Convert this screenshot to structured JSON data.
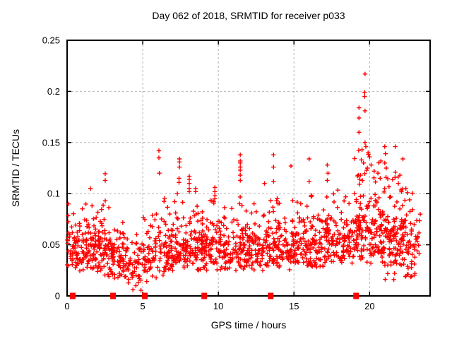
{
  "figure": {
    "background": "#ffffff"
  },
  "chart_data": {
    "type": "scatter",
    "title": "Day 062 of 2018, SRMTID for receiver p033",
    "xlabel": "GPS time / hours",
    "ylabel": "SRMTID / TECUs",
    "xlim": [
      0,
      24
    ],
    "ylim": [
      0,
      0.25
    ],
    "xticks": [
      0,
      5,
      10,
      15,
      20
    ],
    "xtick_labels": [
      "0",
      "5",
      "10",
      "15",
      "20"
    ],
    "yticks": [
      0,
      0.05,
      0.1,
      0.15,
      0.2,
      0.25
    ],
    "ytick_labels": [
      "0",
      "0.05",
      "0.1",
      "0.15",
      "0.2",
      "0.25"
    ],
    "grid": {
      "style": "dashed",
      "on_major": true,
      "color": "#b3b3b3"
    },
    "legend": "none",
    "colors": {
      "marker": "#ff0000",
      "border": "#000000",
      "background": "#ffffff"
    },
    "series": [
      {
        "name": "srmtid-points",
        "marker": "plus",
        "color": "#ff0000",
        "seed": 20180623,
        "band_segments_format": [
          "x_start",
          "x_end",
          "n_points",
          "center",
          "sigma",
          "y_min",
          "y_max"
        ],
        "band_segments": [
          [
            0.0,
            0.5,
            28,
            0.048,
            0.013,
            0.025,
            0.09
          ],
          [
            0.5,
            1.0,
            32,
            0.045,
            0.012,
            0.022,
            0.08
          ],
          [
            1.0,
            2.0,
            70,
            0.046,
            0.013,
            0.02,
            0.095
          ],
          [
            2.0,
            3.0,
            70,
            0.044,
            0.013,
            0.018,
            0.09
          ],
          [
            3.0,
            4.0,
            65,
            0.038,
            0.011,
            0.015,
            0.075
          ],
          [
            4.0,
            5.0,
            42,
            0.03,
            0.012,
            0.005,
            0.06
          ],
          [
            5.0,
            6.0,
            50,
            0.04,
            0.013,
            0.012,
            0.085
          ],
          [
            6.0,
            7.0,
            60,
            0.046,
            0.013,
            0.02,
            0.1
          ],
          [
            7.0,
            8.0,
            65,
            0.048,
            0.014,
            0.025,
            0.105
          ],
          [
            8.0,
            9.0,
            65,
            0.05,
            0.014,
            0.025,
            0.1
          ],
          [
            9.0,
            10.0,
            60,
            0.046,
            0.013,
            0.022,
            0.095
          ],
          [
            10.0,
            11.0,
            60,
            0.047,
            0.013,
            0.025,
            0.092
          ],
          [
            11.0,
            12.0,
            62,
            0.048,
            0.014,
            0.025,
            0.105
          ],
          [
            12.0,
            13.0,
            62,
            0.046,
            0.013,
            0.025,
            0.095
          ],
          [
            13.0,
            14.0,
            62,
            0.048,
            0.014,
            0.025,
            0.1
          ],
          [
            14.0,
            15.0,
            60,
            0.047,
            0.013,
            0.025,
            0.095
          ],
          [
            15.0,
            16.0,
            60,
            0.048,
            0.013,
            0.027,
            0.098
          ],
          [
            16.0,
            17.0,
            60,
            0.05,
            0.014,
            0.028,
            0.1
          ],
          [
            17.0,
            18.0,
            62,
            0.052,
            0.014,
            0.03,
            0.105
          ],
          [
            18.0,
            19.0,
            60,
            0.05,
            0.013,
            0.03,
            0.098
          ],
          [
            19.0,
            20.0,
            75,
            0.062,
            0.02,
            0.032,
            0.145
          ],
          [
            20.0,
            21.0,
            75,
            0.06,
            0.02,
            0.032,
            0.132
          ],
          [
            21.0,
            22.0,
            75,
            0.055,
            0.018,
            0.015,
            0.12
          ],
          [
            22.0,
            23.0,
            70,
            0.05,
            0.018,
            0.018,
            0.105
          ],
          [
            23.0,
            23.35,
            14,
            0.045,
            0.015,
            0.02,
            0.08
          ]
        ],
        "outlier_points": [
          [
            0.08,
            0.09
          ],
          [
            1.54,
            0.105
          ],
          [
            2.52,
            0.1195
          ],
          [
            2.52,
            0.113
          ],
          [
            2.52,
            0.093
          ],
          [
            6.07,
            0.142
          ],
          [
            6.07,
            0.135
          ],
          [
            6.1,
            0.12
          ],
          [
            7.43,
            0.134
          ],
          [
            7.43,
            0.131
          ],
          [
            7.43,
            0.126
          ],
          [
            7.4,
            0.115
          ],
          [
            7.4,
            0.111
          ],
          [
            8.08,
            0.117
          ],
          [
            8.08,
            0.114
          ],
          [
            8.08,
            0.11
          ],
          [
            8.08,
            0.105
          ],
          [
            8.08,
            0.102
          ],
          [
            8.5,
            0.105
          ],
          [
            8.5,
            0.102
          ],
          [
            9.77,
            0.106
          ],
          [
            9.77,
            0.102
          ],
          [
            9.77,
            0.098
          ],
          [
            9.77,
            0.095
          ],
          [
            11.45,
            0.138
          ],
          [
            11.45,
            0.132
          ],
          [
            11.45,
            0.13
          ],
          [
            11.45,
            0.126
          ],
          [
            11.45,
            0.123
          ],
          [
            11.45,
            0.118
          ],
          [
            11.45,
            0.113
          ],
          [
            13.05,
            0.11
          ],
          [
            13.65,
            0.138
          ],
          [
            13.65,
            0.126
          ],
          [
            13.65,
            0.112
          ],
          [
            14.8,
            0.127
          ],
          [
            16.0,
            0.134
          ],
          [
            16.0,
            0.112
          ],
          [
            17.2,
            0.128
          ],
          [
            17.25,
            0.12
          ],
          [
            17.2,
            0.113
          ],
          [
            19.7,
            0.217
          ],
          [
            19.67,
            0.199
          ],
          [
            19.67,
            0.195
          ],
          [
            19.3,
            0.184
          ],
          [
            19.7,
            0.181
          ],
          [
            19.3,
            0.174
          ],
          [
            19.3,
            0.16
          ],
          [
            19.7,
            0.15
          ],
          [
            19.75,
            0.146
          ],
          [
            19.5,
            0.143
          ],
          [
            19.9,
            0.14
          ],
          [
            20.0,
            0.136
          ],
          [
            19.45,
            0.133
          ],
          [
            19.6,
            0.13
          ],
          [
            20.1,
            0.128
          ],
          [
            19.85,
            0.125
          ],
          [
            20.3,
            0.122
          ],
          [
            20.55,
            0.12
          ],
          [
            19.4,
            0.118
          ],
          [
            20.7,
            0.115
          ],
          [
            21.0,
            0.146
          ],
          [
            21.05,
            0.139
          ],
          [
            21.0,
            0.13
          ],
          [
            21.1,
            0.125
          ],
          [
            21.7,
            0.146
          ],
          [
            22.2,
            0.134
          ],
          [
            21.7,
            0.121
          ],
          [
            22.0,
            0.118
          ],
          [
            21.9,
            0.11
          ],
          [
            22.4,
            0.105
          ],
          [
            22.5,
            0.101
          ],
          [
            4.35,
            0.006
          ],
          [
            4.55,
            0.01
          ],
          [
            4.7,
            0.013
          ],
          [
            21.6,
            0.016
          ],
          [
            21.65,
            0.022
          ],
          [
            22.5,
            0.021
          ],
          [
            22.55,
            0.027
          ]
        ]
      },
      {
        "name": "zero-flag-squares",
        "marker": "filled-square",
        "color": "#ff0000",
        "y": 0,
        "x": [
          0.37,
          3.04,
          5.14,
          9.07,
          13.46,
          19.11
        ]
      }
    ]
  }
}
